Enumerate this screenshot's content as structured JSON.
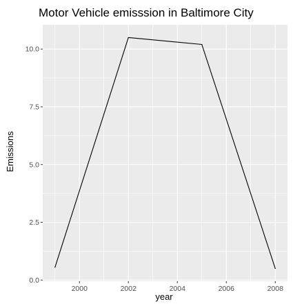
{
  "chart_data": {
    "type": "line",
    "title": "Motor Vehicle emisssion in Baltimore City",
    "xlabel": "year",
    "ylabel": "Emissions",
    "x": [
      1999,
      2002,
      2005,
      2008
    ],
    "series": [
      {
        "values": [
          0.55,
          10.5,
          10.2,
          0.5
        ]
      }
    ],
    "xlim": [
      1998.5,
      2008.5
    ],
    "ylim": [
      -0.05,
      11.05
    ],
    "xticks": [
      2000,
      2002,
      2004,
      2006,
      2008
    ],
    "xtick_labels": [
      "2000",
      "2002",
      "2004",
      "2006",
      "2008"
    ],
    "yticks": [
      0,
      2.5,
      5,
      7.5,
      10
    ],
    "ytick_labels": [
      "0.0",
      "2.5",
      "5.0",
      "7.5",
      "10.0"
    ],
    "grid": true,
    "colors": {
      "panel": "#ebebeb",
      "grid": "#ffffff",
      "line": "#000000",
      "tick_text": "#4d4d4d"
    }
  }
}
